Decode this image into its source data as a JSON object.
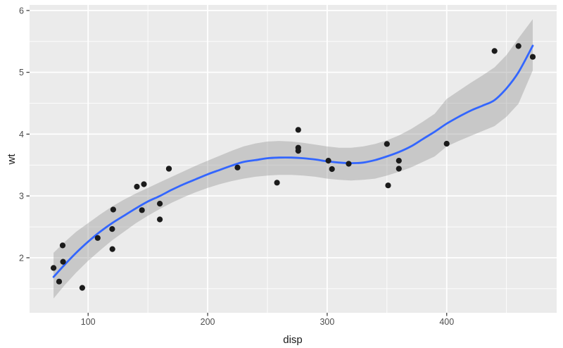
{
  "figure": {
    "background": "#ffffff"
  },
  "chart_data": {
    "type": "scatter",
    "title": "",
    "xlabel": "disp",
    "ylabel": "wt",
    "legend": "none",
    "grid": "on",
    "panel_background": "#EBEBEB",
    "grid_color": "#FFFFFF",
    "tick_mark_color": "#333333",
    "axis_text_color": "#4D4D4D",
    "axis_title_color": "#1A1A1A",
    "point_color": "#1B1B1B",
    "smooth_line_color": "#3366FF",
    "ribbon_color": "#999999",
    "ribbon_opacity": 0.42,
    "xlim": [
      51.0,
      492.0
    ],
    "ylim": [
      1.11,
      6.09
    ],
    "x_ticks": [
      100,
      200,
      300,
      400
    ],
    "x_minor_ticks": [
      150,
      250,
      350,
      450
    ],
    "y_ticks": [
      2,
      3,
      4,
      5,
      6
    ],
    "y_minor_ticks": [
      1.5,
      2.5,
      3.5,
      4.5,
      5.5
    ],
    "points": [
      [
        160,
        2.62
      ],
      [
        160,
        2.875
      ],
      [
        108,
        2.32
      ],
      [
        258,
        3.215
      ],
      [
        360,
        3.44
      ],
      [
        225,
        3.46
      ],
      [
        360,
        3.57
      ],
      [
        146.7,
        3.19
      ],
      [
        140.8,
        3.15
      ],
      [
        167.6,
        3.44
      ],
      [
        167.6,
        3.44
      ],
      [
        275.8,
        4.07
      ],
      [
        275.8,
        3.73
      ],
      [
        275.8,
        3.78
      ],
      [
        472,
        5.25
      ],
      [
        460,
        5.424
      ],
      [
        440,
        5.345
      ],
      [
        78.7,
        2.2
      ],
      [
        75.7,
        1.615
      ],
      [
        71.1,
        1.835
      ],
      [
        120.1,
        2.465
      ],
      [
        318,
        3.52
      ],
      [
        304,
        3.435
      ],
      [
        350,
        3.84
      ],
      [
        400,
        3.845
      ],
      [
        79,
        1.935
      ],
      [
        120.3,
        2.14
      ],
      [
        95.1,
        1.513
      ],
      [
        351,
        3.17
      ],
      [
        121,
        2.78
      ],
      [
        145,
        2.77
      ],
      [
        301,
        3.57
      ]
    ],
    "smooth": {
      "x": [
        71.1,
        80,
        90,
        100,
        110,
        120,
        130,
        140,
        150,
        160,
        170,
        180,
        190,
        200,
        210,
        220,
        230,
        240,
        250,
        260,
        270,
        280,
        290,
        300,
        310,
        320,
        330,
        340,
        350,
        360,
        370,
        380,
        390,
        400,
        410,
        420,
        430,
        440,
        450,
        460,
        472
      ],
      "fit": [
        1.69,
        1.88,
        2.08,
        2.26,
        2.42,
        2.56,
        2.68,
        2.8,
        2.91,
        3.0,
        3.1,
        3.19,
        3.27,
        3.35,
        3.42,
        3.49,
        3.55,
        3.58,
        3.61,
        3.62,
        3.62,
        3.61,
        3.59,
        3.56,
        3.54,
        3.53,
        3.54,
        3.58,
        3.64,
        3.71,
        3.8,
        3.92,
        4.04,
        4.17,
        4.28,
        4.38,
        4.46,
        4.55,
        4.74,
        5.0,
        5.43
      ],
      "lower": [
        1.34,
        1.55,
        1.76,
        1.95,
        2.12,
        2.28,
        2.42,
        2.56,
        2.68,
        2.79,
        2.89,
        2.98,
        3.06,
        3.13,
        3.19,
        3.24,
        3.28,
        3.31,
        3.33,
        3.34,
        3.34,
        3.33,
        3.31,
        3.28,
        3.26,
        3.25,
        3.26,
        3.28,
        3.33,
        3.39,
        3.46,
        3.55,
        3.64,
        3.8,
        3.89,
        3.97,
        4.05,
        4.13,
        4.28,
        4.49,
        5.03
      ],
      "upper": [
        2.08,
        2.25,
        2.42,
        2.56,
        2.7,
        2.83,
        2.94,
        3.04,
        3.13,
        3.22,
        3.31,
        3.4,
        3.49,
        3.57,
        3.65,
        3.73,
        3.8,
        3.85,
        3.88,
        3.89,
        3.88,
        3.86,
        3.83,
        3.8,
        3.78,
        3.78,
        3.8,
        3.84,
        3.9,
        3.98,
        4.08,
        4.2,
        4.33,
        4.57,
        4.7,
        4.83,
        4.95,
        5.08,
        5.28,
        5.55,
        5.86
      ]
    }
  }
}
